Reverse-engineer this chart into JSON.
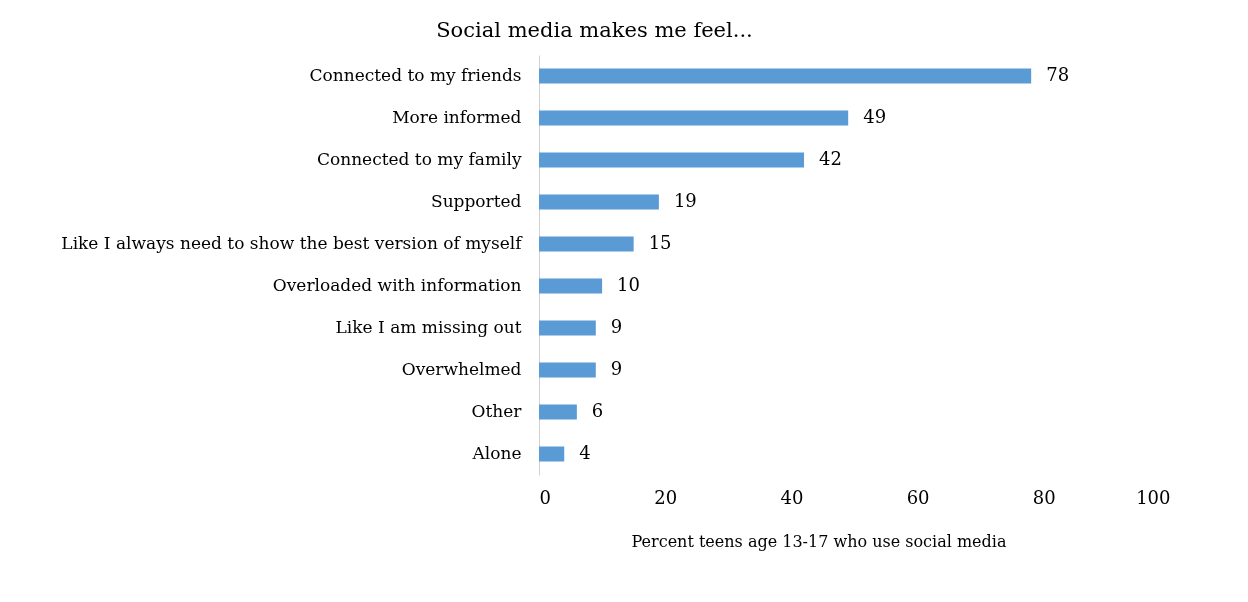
{
  "chart_data": {
    "type": "bar",
    "orientation": "horizontal",
    "title": "Social media makes me feel...",
    "xlabel": "Percent teens age 13-17 who use social media",
    "categories": [
      "Connected to my friends",
      "More informed",
      "Connected to my family",
      "Supported",
      "Like I always need to show the best version of myself",
      "Overloaded with information",
      "Like I am missing out",
      "Overwhelmed",
      "Other",
      "Alone"
    ],
    "values": [
      78,
      49,
      42,
      19,
      15,
      10,
      9,
      9,
      6,
      4
    ],
    "color": "#5b9bd5",
    "xlim": [
      0,
      100
    ],
    "xticks": [
      0,
      20,
      40,
      60,
      80,
      100
    ],
    "grid": false,
    "data_labels": true
  }
}
